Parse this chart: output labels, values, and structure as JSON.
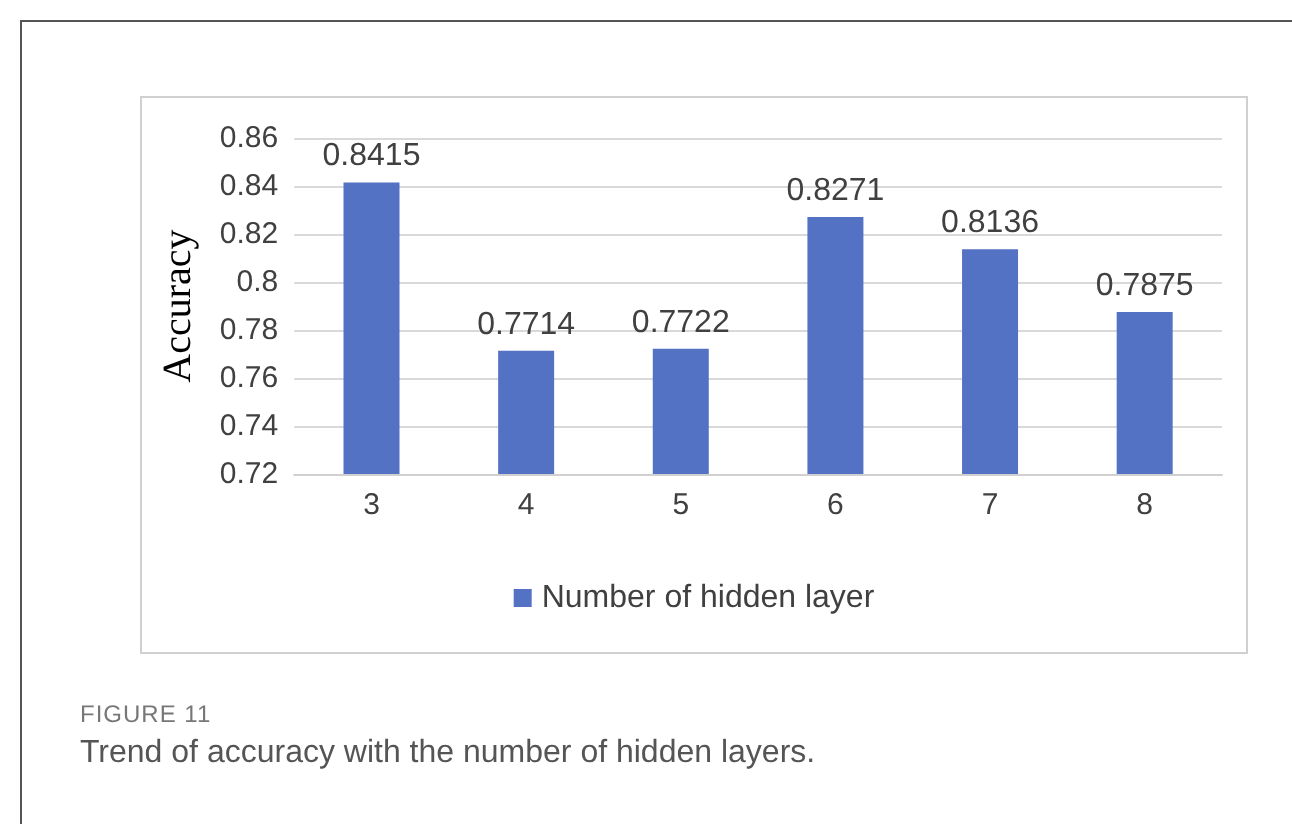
{
  "chart_data": {
    "type": "bar",
    "ylabel": "Accuracy",
    "categories": [
      "3",
      "4",
      "5",
      "6",
      "7",
      "8"
    ],
    "series": [
      {
        "name": "Number of hidden layer",
        "color": "#5472c4",
        "values": [
          0.8415,
          0.7714,
          0.7722,
          0.8271,
          0.8136,
          0.7875
        ]
      }
    ],
    "ylim": [
      0.72,
      0.86
    ],
    "yticks": [
      0.72,
      0.74,
      0.76,
      0.78,
      0.8,
      0.82,
      0.84,
      0.86
    ],
    "grid": "y",
    "legend": "bottom",
    "data_labels": true,
    "annotations": [
      "FIGURE 11",
      "Trend of accuracy with the number of hidden layers."
    ]
  }
}
